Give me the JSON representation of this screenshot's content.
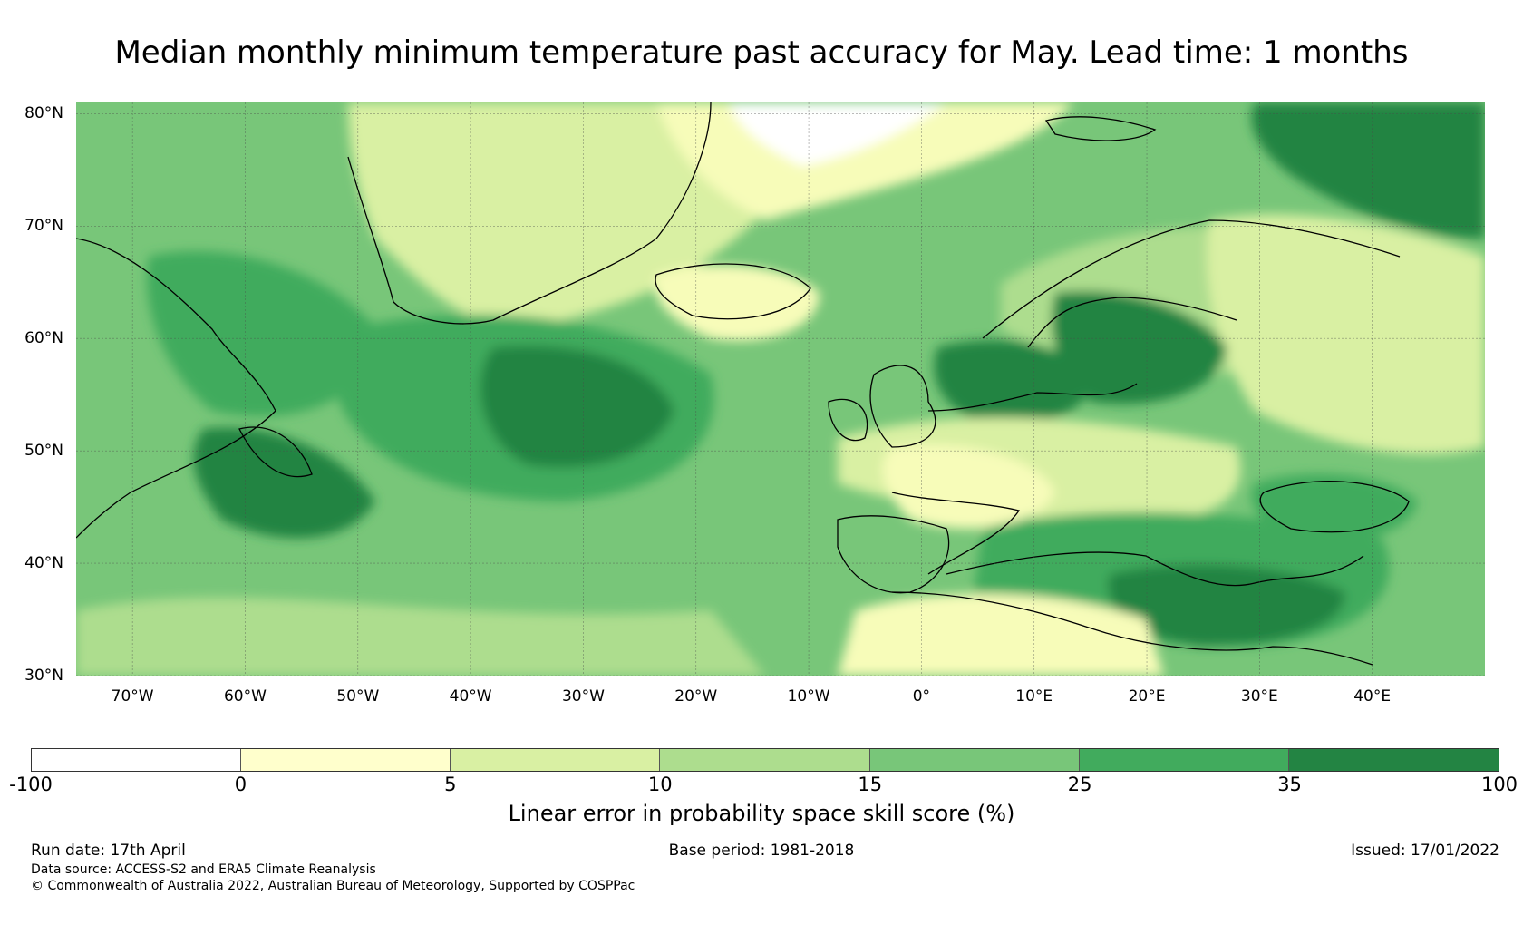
{
  "title": "Median monthly minimum temperature past accuracy for May. Lead time: 1 months",
  "map": {
    "extent": {
      "lon": [
        -75,
        50
      ],
      "lat": [
        30,
        81
      ]
    },
    "lat_ticks": [
      {
        "value": 80,
        "label": "80°N"
      },
      {
        "value": 70,
        "label": "70°N"
      },
      {
        "value": 60,
        "label": "60°N"
      },
      {
        "value": 50,
        "label": "50°N"
      },
      {
        "value": 40,
        "label": "40°N"
      },
      {
        "value": 30,
        "label": "30°N"
      }
    ],
    "lon_ticks": [
      {
        "value": -70,
        "label": "70°W"
      },
      {
        "value": -60,
        "label": "60°W"
      },
      {
        "value": -50,
        "label": "50°W"
      },
      {
        "value": -40,
        "label": "40°W"
      },
      {
        "value": -30,
        "label": "30°W"
      },
      {
        "value": -20,
        "label": "20°W"
      },
      {
        "value": -10,
        "label": "10°W"
      },
      {
        "value": 0,
        "label": "0°"
      },
      {
        "value": 10,
        "label": "10°E"
      },
      {
        "value": 20,
        "label": "20°E"
      },
      {
        "value": 30,
        "label": "30°E"
      },
      {
        "value": 40,
        "label": "40°E"
      }
    ],
    "regions": [
      {
        "name": "background",
        "color": "#78c679"
      },
      {
        "name": "greenland-plateau",
        "color": "#d9f0a3"
      },
      {
        "name": "fram-strait",
        "color": "#ffffff"
      },
      {
        "name": "arctic-ice-edge",
        "color": "#f7fcb9"
      },
      {
        "name": "labrador-sea",
        "color": "#41ab5d"
      },
      {
        "name": "newfoundland",
        "color": "#238443"
      },
      {
        "name": "north-atlantic-core",
        "color": "#41ab5d"
      },
      {
        "name": "north-atlantic-deep",
        "color": "#238443"
      },
      {
        "name": "iceland",
        "color": "#f7fcb9"
      },
      {
        "name": "north-sea",
        "color": "#238443"
      },
      {
        "name": "baltic",
        "color": "#238443"
      },
      {
        "name": "scandinavia",
        "color": "#addd8e"
      },
      {
        "name": "russia-north",
        "color": "#d9f0a3"
      },
      {
        "name": "barents-sea",
        "color": "#238443"
      },
      {
        "name": "western-europe",
        "color": "#d9f0a3"
      },
      {
        "name": "france",
        "color": "#f7fcb9"
      },
      {
        "name": "mediterranean",
        "color": "#41ab5d"
      },
      {
        "name": "mediterranean-east",
        "color": "#238443"
      },
      {
        "name": "black-sea",
        "color": "#41ab5d"
      },
      {
        "name": "sahara",
        "color": "#f7fcb9"
      },
      {
        "name": "subtropical-atlantic",
        "color": "#addd8e"
      }
    ]
  },
  "colorbar": {
    "label": "Linear error in probability space skill score (%)",
    "bins": [
      {
        "from": -100,
        "to": 0,
        "color": "#ffffff"
      },
      {
        "from": 0,
        "to": 5,
        "color": "#ffffcc"
      },
      {
        "from": 5,
        "to": 10,
        "color": "#d9f0a3"
      },
      {
        "from": 10,
        "to": 15,
        "color": "#addd8e"
      },
      {
        "from": 15,
        "to": 25,
        "color": "#78c679"
      },
      {
        "from": 25,
        "to": 35,
        "color": "#41ab5d"
      },
      {
        "from": 35,
        "to": 100,
        "color": "#238443"
      }
    ],
    "ticks": [
      "-100",
      "0",
      "5",
      "10",
      "15",
      "25",
      "35",
      "100"
    ]
  },
  "footer": {
    "run_date": "Run date: 17th April",
    "base_period": "Base period: 1981-2018",
    "issued": "Issued: 17/01/2022",
    "data_source": "Data source: ACCESS-S2 and ERA5 Climate Reanalysis",
    "copyright": "© Commonwealth of Australia 2022, Australian Bureau of Meteorology, Supported by COSPPac"
  }
}
